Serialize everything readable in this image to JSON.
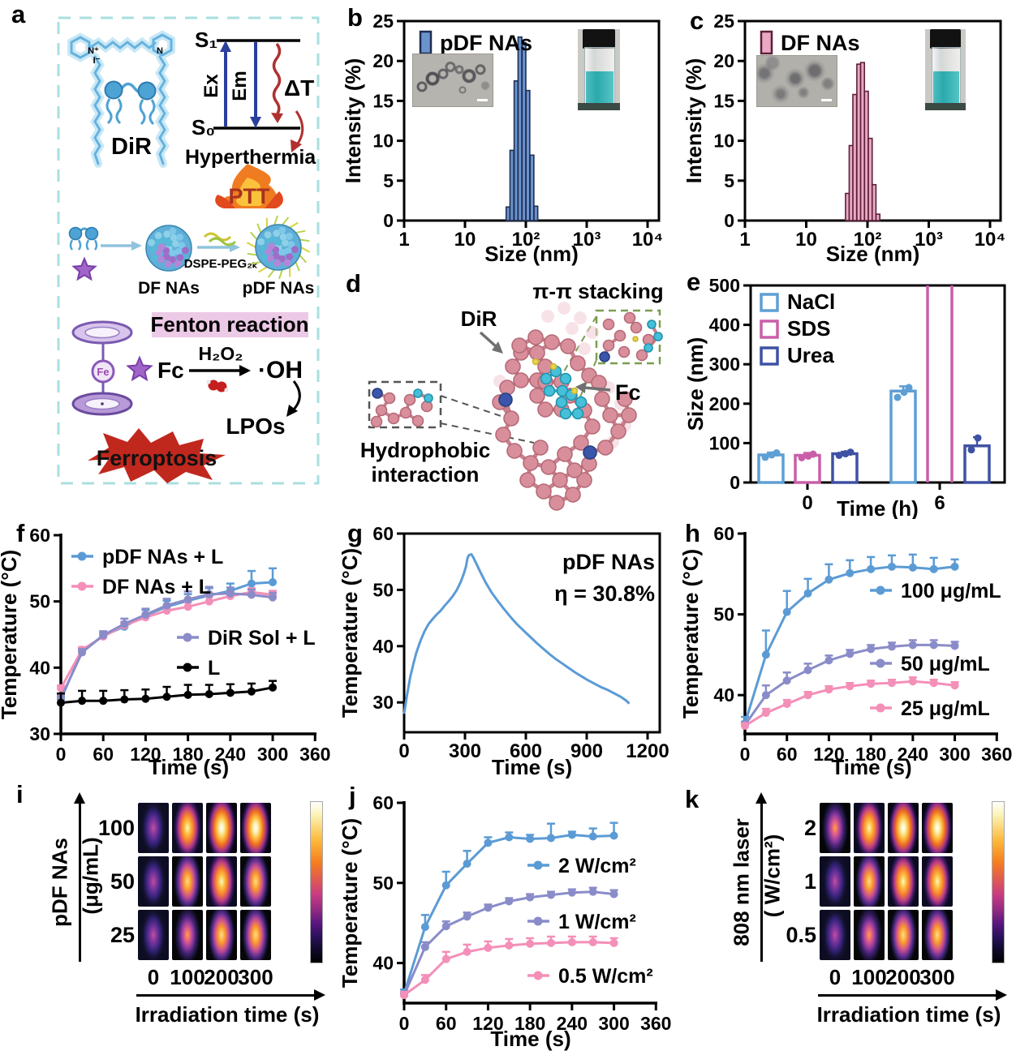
{
  "panels": {
    "a": {
      "letter": "a"
    },
    "b": {
      "letter": "b"
    },
    "c": {
      "letter": "c"
    },
    "d": {
      "letter": "d"
    },
    "e": {
      "letter": "e"
    },
    "f": {
      "letter": "f"
    },
    "g": {
      "letter": "g"
    },
    "h": {
      "letter": "h"
    },
    "i": {
      "letter": "i"
    },
    "j": {
      "letter": "j"
    },
    "k": {
      "letter": "k"
    }
  },
  "panel_a": {
    "dir": "DiR",
    "n_plus": "N⁺",
    "i_minus": "I⁻",
    "n_right": "N",
    "s1": "S₁",
    "s0": "S₀",
    "ex": "Ex",
    "em": "Em",
    "delta_t": "ΔT",
    "hyperthermia": "Hyperthermia",
    "ptt": "PTT",
    "dspe_peg": "DSPE-PEG₂ₖ",
    "df_nas": "DF NAs",
    "pdf_nas": "pDF NAs",
    "fenton_reaction": "Fenton reaction",
    "fc": "Fc",
    "h2o2": "H₂O₂",
    "hydroxyl": "·OH",
    "lpos": "LPOs",
    "ferroptosis": "Ferroptosis"
  },
  "panel_d": {
    "pi_pi": "π-π stacking",
    "dir": "DiR",
    "fc": "Fc",
    "hydrophobic_line1": "Hydrophobic",
    "hydrophobic_line2": "interaction"
  },
  "chart_data": {
    "b": {
      "type": "bar",
      "legend": "pDF NAs",
      "bar_color": "#6b93cd",
      "bar_edge": "#1f2d52",
      "xlabel": "Size (nm)",
      "ylabel": "Intensity (%)",
      "x_scale": "log",
      "xtick_labels": [
        "1",
        "10",
        "10²",
        "10³",
        "10⁴"
      ],
      "ylim": [
        0,
        25
      ],
      "yticks": [
        0,
        5,
        10,
        15,
        20,
        25
      ],
      "bar_centers_nm": [
        51,
        59,
        69,
        80,
        93,
        108,
        126,
        146
      ],
      "bar_width_log": 0.062,
      "values": [
        1.7,
        8.8,
        17.5,
        23.0,
        22.3,
        16.3,
        8.2,
        1.8
      ]
    },
    "c": {
      "type": "bar",
      "legend": "DF NAs",
      "bar_color": "#e9a8c4",
      "bar_edge": "#5d1f38",
      "xlabel": "Size (nm)",
      "ylabel": "Intensity (%)",
      "x_scale": "log",
      "xtick_labels": [
        "1",
        "10",
        "10²",
        "10³",
        "10⁴"
      ],
      "ylim": [
        0,
        25
      ],
      "yticks": [
        0,
        5,
        10,
        15,
        20,
        25
      ],
      "bar_centers_nm": [
        47,
        54,
        62,
        72,
        83,
        96,
        111,
        128,
        148
      ],
      "bar_width_log": 0.062,
      "values": [
        3.4,
        9.4,
        15.8,
        19.6,
        19.8,
        16.2,
        10.3,
        4.5,
        0.8
      ]
    },
    "e": {
      "type": "bar",
      "xlabel": "Time (h)",
      "ylabel": "Size (nm)",
      "ylim": [
        0,
        500
      ],
      "yticks": [
        0,
        100,
        200,
        300,
        400,
        500
      ],
      "groups": [
        "0",
        "6"
      ],
      "series": [
        {
          "name": "NaCl",
          "color": "#5e9fd4",
          "values": [
            70,
            232
          ],
          "err": [
            6,
            12
          ],
          "clipped": [
            false,
            false
          ],
          "dots": [
            [
              64,
              70,
              75
            ],
            [
              216,
              229,
              241
            ]
          ]
        },
        {
          "name": "SDS",
          "color": "#c95fa8",
          "values": [
            69,
            510
          ],
          "err": [
            6,
            0
          ],
          "clipped": [
            false,
            true
          ],
          "dots": [
            [
              63,
              67,
              72
            ],
            []
          ]
        },
        {
          "name": "Urea",
          "color": "#3f51a3",
          "values": [
            73,
            93
          ],
          "err": [
            5,
            22
          ],
          "clipped": [
            false,
            false
          ],
          "dots": [
            [
              69,
              73,
              77
            ],
            [
              83,
              113
            ]
          ]
        }
      ]
    },
    "f": {
      "type": "line",
      "xlabel": "Time (s)",
      "ylabel": "Temperature (°C)",
      "xlim": [
        0,
        362
      ],
      "xticks": [
        0,
        60,
        120,
        180,
        240,
        300,
        360
      ],
      "ylim": [
        30,
        60
      ],
      "yticks": [
        30,
        40,
        50,
        60
      ],
      "x": [
        0,
        30,
        60,
        90,
        120,
        150,
        180,
        210,
        240,
        270,
        300
      ],
      "series": [
        {
          "name": "pDF NAs + L",
          "color": "#5b9bd5",
          "values": [
            35.2,
            42.5,
            44.8,
            46.2,
            47.9,
            49.2,
            50.1,
            50.9,
            51.6,
            52.7,
            52.9
          ],
          "err": [
            0.4,
            0.4,
            0.5,
            0.7,
            0.8,
            0.9,
            1.0,
            1.1,
            1.1,
            1.9,
            2.1
          ]
        },
        {
          "name": "DF NAs + L",
          "color": "#f48fb8",
          "values": [
            36.9,
            42.7,
            44.7,
            46.4,
            47.6,
            48.6,
            49.2,
            50.0,
            50.8,
            51.4,
            51.0
          ],
          "err": [
            0.4,
            0.4,
            0.4,
            0.5,
            0.6,
            0.6,
            0.7,
            0.7,
            0.6,
            0.6,
            0.6
          ]
        },
        {
          "name": "DiR Sol + L",
          "color": "#8a8cc9",
          "values": [
            35.4,
            42.3,
            44.9,
            46.6,
            48.0,
            49.4,
            50.3,
            51.1,
            51.2,
            51.0,
            50.6
          ],
          "err": [
            0.5,
            0.5,
            0.6,
            0.8,
            0.9,
            1.0,
            1.2,
            1.1,
            0.9,
            0.8,
            0.7
          ]
        },
        {
          "name": "L",
          "color": "#000000",
          "values": [
            34.7,
            35.0,
            35.0,
            35.2,
            35.3,
            35.6,
            35.9,
            36.0,
            36.2,
            36.4,
            37.0
          ],
          "err": [
            1.4,
            1.5,
            1.5,
            1.4,
            1.4,
            1.5,
            1.5,
            1.4,
            1.3,
            1.2,
            1.0
          ]
        }
      ],
      "legend_groups": [
        {
          "items": [
            0,
            1
          ],
          "x": 88,
          "y": 46
        },
        {
          "items": [
            2,
            3
          ],
          "x": 218,
          "y": 146
        }
      ]
    },
    "g": {
      "type": "line",
      "color": "#5b9bd5",
      "annotation_line1": "pDF NAs",
      "annotation_line2": "η = 30.8%",
      "xlabel": "Time (s)",
      "ylabel": "Temperature (°C)",
      "xlim": [
        0,
        1260
      ],
      "xticks": [
        0,
        300,
        600,
        900,
        1200
      ],
      "ylim": [
        24.7,
        60
      ],
      "yticks": [
        30,
        40,
        50,
        60
      ],
      "points": [
        [
          0,
          28
        ],
        [
          15,
          31.5
        ],
        [
          30,
          34.5
        ],
        [
          45,
          36.8
        ],
        [
          60,
          38.8
        ],
        [
          80,
          40.9
        ],
        [
          100,
          42.6
        ],
        [
          120,
          43.9
        ],
        [
          140,
          44.8
        ],
        [
          160,
          45.6
        ],
        [
          180,
          46.3
        ],
        [
          200,
          47.2
        ],
        [
          220,
          48.0
        ],
        [
          240,
          48.9
        ],
        [
          260,
          50.0
        ],
        [
          280,
          51.5
        ],
        [
          295,
          53.0
        ],
        [
          305,
          54.2
        ],
        [
          312,
          55.6
        ],
        [
          320,
          56.2
        ],
        [
          332,
          56.3
        ],
        [
          342,
          55.7
        ],
        [
          358,
          54.5
        ],
        [
          378,
          53.0
        ],
        [
          402,
          51.3
        ],
        [
          430,
          49.6
        ],
        [
          460,
          48.1
        ],
        [
          492,
          46.6
        ],
        [
          524,
          45.2
        ],
        [
          556,
          43.9
        ],
        [
          588,
          42.8
        ],
        [
          620,
          41.7
        ],
        [
          652,
          40.6
        ],
        [
          684,
          39.6
        ],
        [
          716,
          38.6
        ],
        [
          748,
          37.7
        ],
        [
          780,
          36.9
        ],
        [
          812,
          36.1
        ],
        [
          844,
          35.3
        ],
        [
          876,
          34.6
        ],
        [
          908,
          33.9
        ],
        [
          940,
          33.3
        ],
        [
          972,
          32.7
        ],
        [
          1004,
          32.2
        ],
        [
          1036,
          31.6
        ],
        [
          1068,
          31.0
        ],
        [
          1095,
          30.3
        ],
        [
          1110,
          29.8
        ]
      ]
    },
    "h": {
      "type": "line",
      "xlabel": "Time (s)",
      "ylabel": "Temperature (°C)",
      "xlim": [
        0,
        362
      ],
      "xticks": [
        0,
        60,
        120,
        180,
        240,
        300,
        360
      ],
      "ylim": [
        35.2,
        60
      ],
      "yticks": [
        40,
        50,
        60
      ],
      "x": [
        0,
        30,
        60,
        90,
        120,
        150,
        180,
        210,
        240,
        270,
        300
      ],
      "series": [
        {
          "name": "100 μg/mL",
          "color": "#5b9bd5",
          "values": [
            36.5,
            45.0,
            50.3,
            52.6,
            54.3,
            55.1,
            55.6,
            55.9,
            55.8,
            55.6,
            55.9
          ],
          "err": [
            0.8,
            3.0,
            2.6,
            1.8,
            1.9,
            1.6,
            1.5,
            1.4,
            1.6,
            1.4,
            0.9
          ]
        },
        {
          "name": "50 μg/mL",
          "color": "#8a8cc9",
          "values": [
            36.3,
            40.0,
            41.8,
            43.1,
            44.3,
            45.1,
            45.7,
            46.0,
            46.2,
            46.2,
            46.1
          ],
          "err": [
            0.4,
            1.2,
            1.0,
            0.8,
            0.6,
            0.5,
            0.5,
            0.5,
            0.6,
            0.6,
            0.5
          ]
        },
        {
          "name": "25 μg/mL",
          "color": "#f48fb8",
          "values": [
            36.2,
            37.8,
            38.9,
            40.0,
            40.7,
            41.1,
            41.4,
            41.5,
            41.7,
            41.5,
            41.2
          ],
          "err": [
            0.3,
            0.5,
            0.5,
            0.4,
            0.4,
            0.4,
            0.4,
            0.4,
            0.5,
            0.4,
            0.4
          ]
        }
      ],
      "legend_groups": [
        {
          "items": [
            0
          ],
          "x": 232,
          "y": 88
        },
        {
          "items": [
            1
          ],
          "x": 232,
          "y": 178
        },
        {
          "items": [
            2
          ],
          "x": 232,
          "y": 233
        }
      ]
    },
    "j": {
      "type": "line",
      "xlabel": "Time (s)",
      "ylabel": "Temperature (°C)",
      "xlim": [
        0,
        362
      ],
      "xticks": [
        0,
        60,
        120,
        180,
        240,
        300,
        360
      ],
      "ylim": [
        35,
        60
      ],
      "yticks": [
        40,
        50,
        60
      ],
      "x": [
        0,
        30,
        60,
        90,
        120,
        150,
        180,
        210,
        240,
        270,
        300
      ],
      "series": [
        {
          "name": "2 W/cm²",
          "color": "#5b9bd5",
          "values": [
            36.2,
            44.5,
            49.7,
            52.4,
            55.0,
            55.7,
            55.5,
            55.6,
            56.0,
            55.8,
            55.9
          ],
          "err": [
            0.5,
            1.5,
            1.7,
            1.6,
            0.7,
            0.6,
            0.5,
            1.8,
            0.4,
            1.0,
            1.6
          ]
        },
        {
          "name": "1 W/cm²",
          "color": "#8a8cc9",
          "values": [
            36.0,
            42.0,
            44.6,
            45.8,
            46.9,
            47.7,
            48.2,
            48.5,
            48.8,
            48.9,
            48.6
          ],
          "err": [
            0.4,
            0.6,
            0.6,
            0.5,
            0.4,
            0.4,
            0.4,
            0.4,
            0.4,
            0.5,
            0.5
          ]
        },
        {
          "name": "0.5 W/cm²",
          "color": "#f48fb8",
          "values": [
            36.0,
            37.9,
            40.5,
            41.4,
            41.9,
            42.2,
            42.4,
            42.5,
            42.6,
            42.6,
            42.5
          ],
          "err": [
            0.4,
            0.6,
            0.9,
            0.9,
            0.8,
            0.8,
            0.7,
            0.8,
            0.7,
            0.7,
            0.6
          ]
        }
      ],
      "legend_groups": [
        {
          "items": [
            0
          ],
          "x": 230,
          "y": 107
        },
        {
          "items": [
            1
          ],
          "x": 230,
          "y": 176
        },
        {
          "items": [
            2
          ],
          "x": 230,
          "y": 243
        }
      ]
    }
  },
  "thermal": {
    "i": {
      "axis_line1": "pDF NAs",
      "axis_line2": "(μg/mL)",
      "rows": [
        "100",
        "50",
        "25"
      ],
      "cols": [
        "0",
        "100",
        "200",
        "300"
      ],
      "xlabel": "Irradiation time (s)",
      "heat": [
        [
          1,
          4,
          5,
          5
        ],
        [
          1,
          3,
          4,
          3
        ],
        [
          1,
          2,
          3,
          3
        ]
      ]
    },
    "k": {
      "axis_line1": "808 nm laser",
      "axis_line2": "( W/cm²)",
      "rows": [
        "2",
        "1",
        "0.5"
      ],
      "cols": [
        "0",
        "100",
        "200",
        "300"
      ],
      "xlabel": "Irradiation time (s)",
      "heat": [
        [
          2,
          4,
          5,
          5
        ],
        [
          1,
          3,
          4,
          4
        ],
        [
          1,
          2,
          3,
          3
        ]
      ]
    }
  },
  "colors": {
    "blue_series": "#5b9bd5",
    "pink_series": "#f48fb8",
    "purple_series": "#8a8cc9",
    "hist_blue": "#6b93cd",
    "hist_pink": "#e9a8c4",
    "nacl": "#5e9fd4",
    "sds": "#c95fa8",
    "urea": "#3f51a3",
    "ferroptosis_red": "#c0281e",
    "fenton_bg": "#ecc9e6",
    "panel_border": "#aadfdf"
  }
}
